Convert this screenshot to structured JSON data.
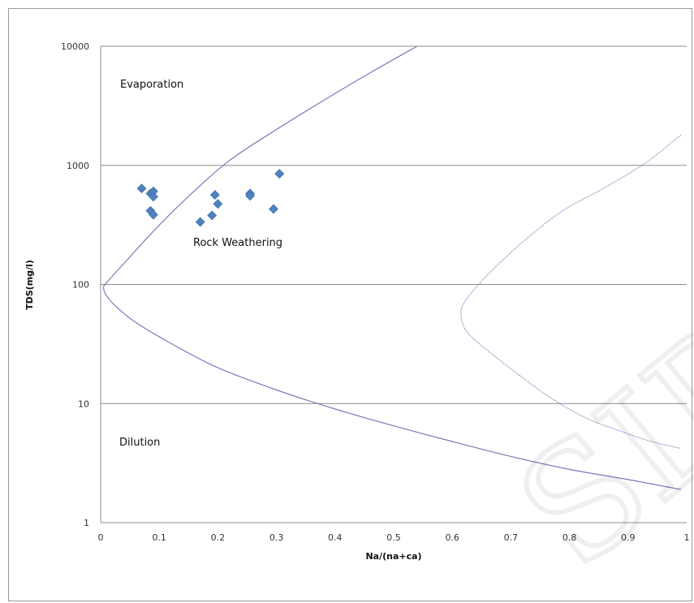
{
  "chart_data": {
    "type": "scatter",
    "title": "",
    "xlabel": "Na/(na+ca)",
    "ylabel": "TDS(mg/l)",
    "xlim": [
      0,
      1
    ],
    "ylim": [
      1,
      10000
    ],
    "y_scale": "log",
    "x_ticks": [
      "0",
      "0.1",
      "0.2",
      "0.3",
      "0.4",
      "0.5",
      "0.6",
      "0.7",
      "0.8",
      "0.9",
      "1"
    ],
    "y_ticks": [
      "1",
      "10",
      "100",
      "1000",
      "10000"
    ],
    "y_tick_values": [
      1,
      10,
      100,
      1000,
      10000
    ],
    "grid": "horizontal",
    "legend": "none",
    "marker_color": "#4f81bd",
    "curve_color": "#7b7bb8",
    "annotations": [
      "Evaporation",
      "Rock Weathering",
      "Dilution"
    ],
    "watermark": "SID",
    "series": [
      {
        "points": [
          {
            "x": 0.07,
            "y": 640
          },
          {
            "x": 0.085,
            "y": 580
          },
          {
            "x": 0.09,
            "y": 605
          },
          {
            "x": 0.09,
            "y": 545
          },
          {
            "x": 0.085,
            "y": 415
          },
          {
            "x": 0.09,
            "y": 385
          },
          {
            "x": 0.17,
            "y": 335
          },
          {
            "x": 0.19,
            "y": 380
          },
          {
            "x": 0.195,
            "y": 565
          },
          {
            "x": 0.2,
            "y": 475
          },
          {
            "x": 0.255,
            "y": 580
          },
          {
            "x": 0.255,
            "y": 555
          },
          {
            "x": 0.295,
            "y": 430
          },
          {
            "x": 0.305,
            "y": 850
          }
        ]
      }
    ],
    "boundary_curves": [
      {
        "points": [
          [
            0.54,
            10000
          ],
          [
            0.46,
            6000
          ],
          [
            0.38,
            3500
          ],
          [
            0.3,
            2000
          ],
          [
            0.22,
            1100
          ],
          [
            0.15,
            550
          ],
          [
            0.09,
            280
          ],
          [
            0.045,
            160
          ],
          [
            0.015,
            110
          ],
          [
            0.005,
            92
          ],
          [
            0.02,
            70
          ],
          [
            0.06,
            48
          ],
          [
            0.12,
            32
          ],
          [
            0.2,
            20
          ],
          [
            0.3,
            13
          ],
          [
            0.4,
            9
          ],
          [
            0.5,
            6.5
          ],
          [
            0.6,
            4.8
          ],
          [
            0.7,
            3.6
          ],
          [
            0.8,
            2.8
          ],
          [
            0.9,
            2.3
          ],
          [
            0.99,
            1.9
          ]
        ]
      },
      {
        "points": [
          [
            0.99,
            1800
          ],
          [
            0.93,
            1050
          ],
          [
            0.86,
            650
          ],
          [
            0.79,
            420
          ],
          [
            0.73,
            250
          ],
          [
            0.68,
            150
          ],
          [
            0.645,
            100
          ],
          [
            0.62,
            70
          ],
          [
            0.615,
            55
          ],
          [
            0.625,
            40
          ],
          [
            0.66,
            28
          ],
          [
            0.71,
            18
          ],
          [
            0.77,
            11
          ],
          [
            0.83,
            7.5
          ],
          [
            0.89,
            5.8
          ],
          [
            0.94,
            4.8
          ],
          [
            0.99,
            4.2
          ]
        ]
      }
    ]
  }
}
